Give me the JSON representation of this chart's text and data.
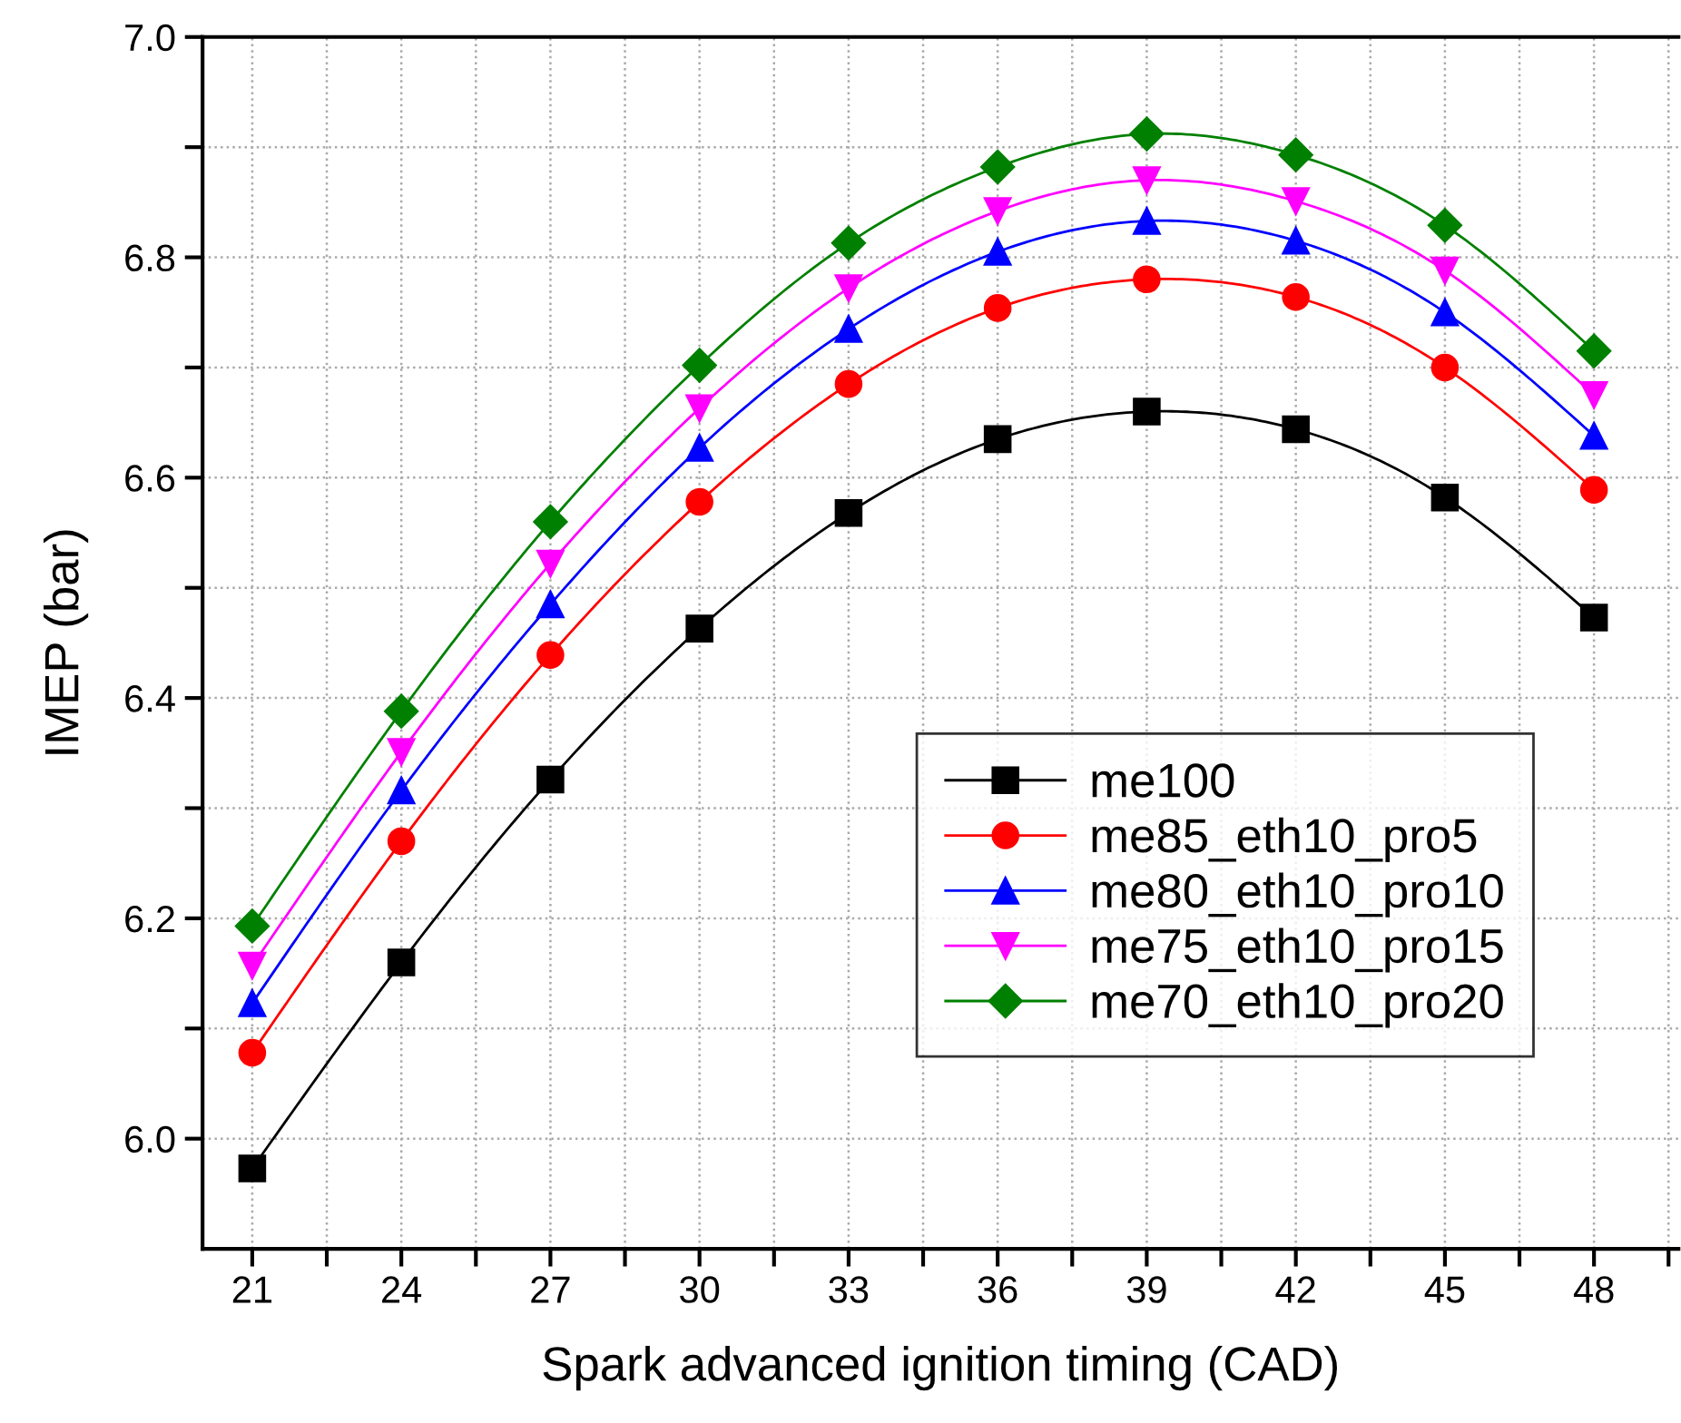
{
  "chart_data": {
    "type": "line",
    "xlabel": "Spark advanced ignition timing (CAD)",
    "ylabel": "IMEP (bar)",
    "x": [
      21,
      24,
      27,
      30,
      33,
      36,
      39,
      42,
      45,
      48
    ],
    "series": [
      {
        "name": "me100",
        "color": "#000000",
        "marker": "square",
        "values": [
          5.973,
          6.16,
          6.326,
          6.463,
          6.568,
          6.635,
          6.66,
          6.644,
          6.582,
          6.473
        ]
      },
      {
        "name": "me85_eth10_pro5",
        "color": "#ff0000",
        "marker": "circle",
        "values": [
          6.078,
          6.27,
          6.439,
          6.578,
          6.685,
          6.754,
          6.78,
          6.764,
          6.7,
          6.589
        ]
      },
      {
        "name": "me80_eth10_pro10",
        "color": "#0000ff",
        "marker": "triangle",
        "values": [
          6.123,
          6.316,
          6.485,
          6.627,
          6.735,
          6.805,
          6.833,
          6.815,
          6.75,
          6.638
        ]
      },
      {
        "name": "me75_eth10_pro15",
        "color": "#ff00ff",
        "marker": "triangle_down",
        "values": [
          6.157,
          6.351,
          6.522,
          6.663,
          6.772,
          6.842,
          6.87,
          6.851,
          6.788,
          6.675
        ]
      },
      {
        "name": "me70_eth10_pro20",
        "color": "#008000",
        "marker": "diamond",
        "values": [
          6.193,
          6.388,
          6.56,
          6.702,
          6.813,
          6.882,
          6.912,
          6.893,
          6.829,
          6.715
        ]
      }
    ],
    "xlim": [
      20,
      49.7
    ],
    "ylim": [
      5.9,
      7.0
    ],
    "xticks": [
      21,
      {
        "value": 22.5,
        "label": null
      },
      24,
      {
        "value": 25.5,
        "label": null
      },
      27,
      {
        "value": 28.5,
        "label": null
      },
      30,
      {
        "value": 31.5,
        "label": null
      },
      33,
      {
        "value": 34.5,
        "label": null
      },
      36,
      {
        "value": 37.5,
        "label": null
      },
      39,
      {
        "value": 40.5,
        "label": null
      },
      42,
      {
        "value": 43.5,
        "label": null
      },
      45,
      {
        "value": 46.5,
        "label": null
      },
      48,
      {
        "value": 49.5,
        "label": null
      }
    ],
    "yticks": [
      {
        "value": 6.0,
        "label": "6.0"
      },
      {
        "value": 6.1,
        "label": null
      },
      {
        "value": 6.2,
        "label": "6.2"
      },
      {
        "value": 6.3,
        "label": null
      },
      {
        "value": 6.4,
        "label": "6.4"
      },
      {
        "value": 6.5,
        "label": null
      },
      {
        "value": 6.6,
        "label": "6.6"
      },
      {
        "value": 6.7,
        "label": null
      },
      {
        "value": 6.8,
        "label": "6.8"
      },
      {
        "value": 6.9,
        "label": null
      },
      {
        "value": 7.0,
        "label": "7.0"
      }
    ],
    "grid": true,
    "legend": "bottom right",
    "line_style": "solid"
  }
}
